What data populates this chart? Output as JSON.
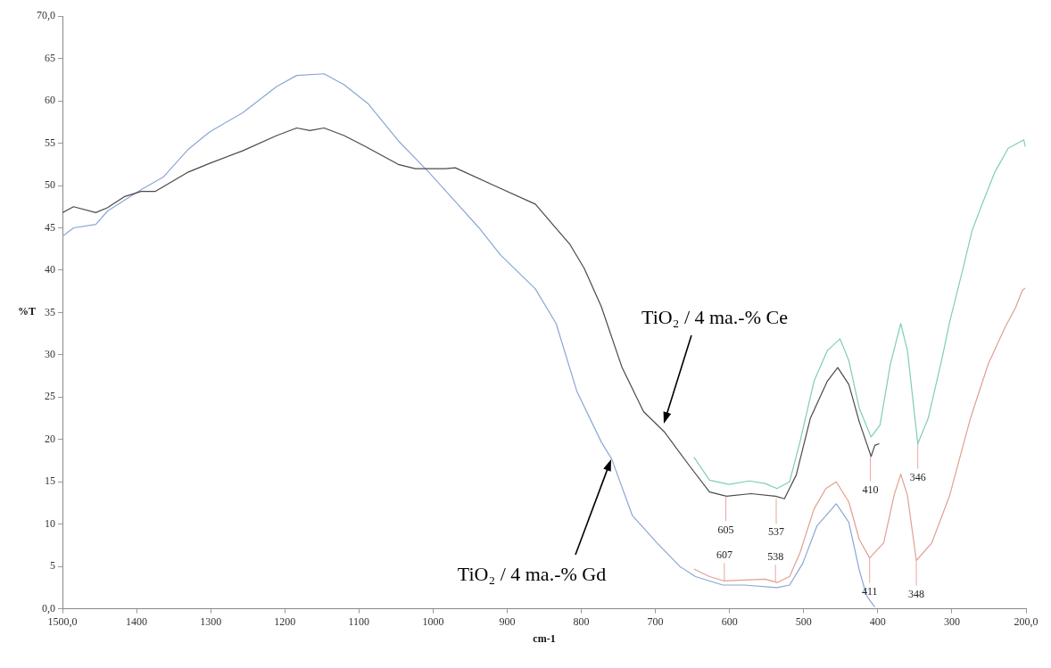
{
  "chart_data": {
    "type": "line",
    "xlabel": "cm-1",
    "ylabel": "%T",
    "xlim": [
      1500,
      200
    ],
    "xticks": [
      {
        "value": 1500,
        "label": "1500,0"
      },
      1400,
      1300,
      1200,
      1100,
      1000,
      900,
      800,
      700,
      600,
      500,
      400,
      300,
      {
        "value": 200,
        "label": "200,0"
      }
    ],
    "ylim": [
      0,
      70
    ],
    "yticks": [
      {
        "value": 0,
        "label": "0,0"
      },
      5,
      10,
      15,
      20,
      25,
      30,
      35,
      40,
      45,
      50,
      55,
      60,
      65,
      {
        "value": 70,
        "label": "70,0"
      }
    ],
    "grid": false,
    "legend": false,
    "marker": "none",
    "line_style": "solid",
    "series": [
      {
        "color": "#4a4a4a",
        "x": [
          1500,
          1485,
          1455,
          1439,
          1416,
          1394,
          1375,
          1330,
          1302,
          1257,
          1211,
          1184,
          1166,
          1147,
          1120,
          1093,
          1047,
          1024,
          983,
          970,
          915,
          862,
          815,
          796,
          773,
          745,
          716,
          688,
          655,
          627,
          604,
          571,
          538,
          526,
          510,
          491,
          468,
          454,
          439,
          425,
          409,
          404,
          398
        ],
        "values": [
          46.8,
          47.5,
          46.8,
          47.4,
          48.7,
          49.3,
          49.3,
          51.6,
          52.6,
          54.1,
          55.9,
          56.8,
          56.5,
          56.8,
          55.9,
          54.7,
          52.5,
          52.0,
          52.0,
          52.1,
          49.9,
          47.8,
          43.0,
          40.2,
          35.7,
          28.5,
          23.3,
          20.9,
          17.0,
          13.8,
          13.3,
          13.6,
          13.3,
          13.0,
          15.8,
          22.5,
          26.9,
          28.5,
          26.5,
          22.1,
          18.0,
          19.3,
          19.5
        ]
      },
      {
        "color": "#8aa6d6",
        "x": [
          1500,
          1485,
          1455,
          1439,
          1394,
          1364,
          1330,
          1302,
          1257,
          1211,
          1184,
          1147,
          1120,
          1088,
          1047,
          1006,
          938,
          909,
          862,
          834,
          806,
          773,
          759,
          731,
          698,
          667,
          646,
          609,
          580,
          536,
          519,
          501,
          482,
          456,
          439,
          425,
          416,
          414,
          404
        ],
        "values": [
          44.0,
          45.0,
          45.4,
          47.0,
          49.5,
          51.0,
          54.3,
          56.3,
          58.6,
          61.7,
          63.0,
          63.2,
          61.9,
          59.7,
          55.3,
          51.6,
          45.0,
          41.8,
          37.8,
          33.7,
          25.7,
          19.7,
          17.7,
          11.0,
          7.8,
          5.0,
          3.8,
          2.8,
          2.8,
          2.5,
          2.8,
          5.4,
          9.8,
          12.4,
          10.2,
          4.6,
          1.8,
          1.4,
          0.2
        ]
      },
      {
        "color": "#7fcfb0",
        "x": [
          648,
          627,
          601,
          573,
          552,
          536,
          519,
          505,
          486,
          468,
          451,
          439,
          425,
          409,
          397,
          383,
          369,
          360,
          346,
          332,
          313,
          303,
          285,
          273,
          261,
          242,
          224,
          203,
          201
        ],
        "values": [
          17.9,
          15.2,
          14.7,
          15.1,
          14.8,
          14.2,
          15.0,
          19.7,
          26.9,
          30.5,
          31.9,
          29.3,
          23.7,
          20.3,
          21.7,
          28.9,
          33.7,
          30.5,
          19.5,
          22.5,
          29.7,
          33.9,
          40.2,
          44.6,
          47.4,
          51.6,
          54.4,
          55.4,
          54.6
        ]
      },
      {
        "color": "#e0a090",
        "x": [
          648,
          627,
          608,
          580,
          552,
          536,
          519,
          505,
          486,
          470,
          456,
          439,
          425,
          411,
          392,
          378,
          369,
          360,
          348,
          327,
          303,
          275,
          251,
          228,
          214,
          205,
          201
        ],
        "values": [
          4.7,
          3.8,
          3.3,
          3.4,
          3.5,
          3.1,
          3.8,
          6.6,
          11.8,
          14.2,
          15.0,
          12.6,
          8.2,
          6.0,
          7.8,
          13.4,
          15.9,
          13.4,
          5.7,
          7.8,
          13.4,
          22.5,
          28.9,
          33.3,
          35.6,
          37.6,
          37.9
        ]
      }
    ],
    "annotations": [
      "TiO₂ / 4 ma.-% Ce",
      "TiO₂ / 4 ma.-% Gd",
      {
        "text": "605",
        "x": 605,
        "y": 13.3
      },
      {
        "text": "537",
        "x": 537,
        "y": 13.0
      },
      {
        "text": "410",
        "x": 410,
        "y": 18.0
      },
      {
        "text": "346",
        "x": 346,
        "y": 19.5
      },
      {
        "text": "607",
        "x": 607,
        "y": 3.3
      },
      {
        "text": "538",
        "x": 538,
        "y": 3.1
      },
      {
        "text": "411",
        "x": 411,
        "y": 6.0
      },
      {
        "text": "348",
        "x": 348,
        "y": 5.7
      }
    ]
  }
}
